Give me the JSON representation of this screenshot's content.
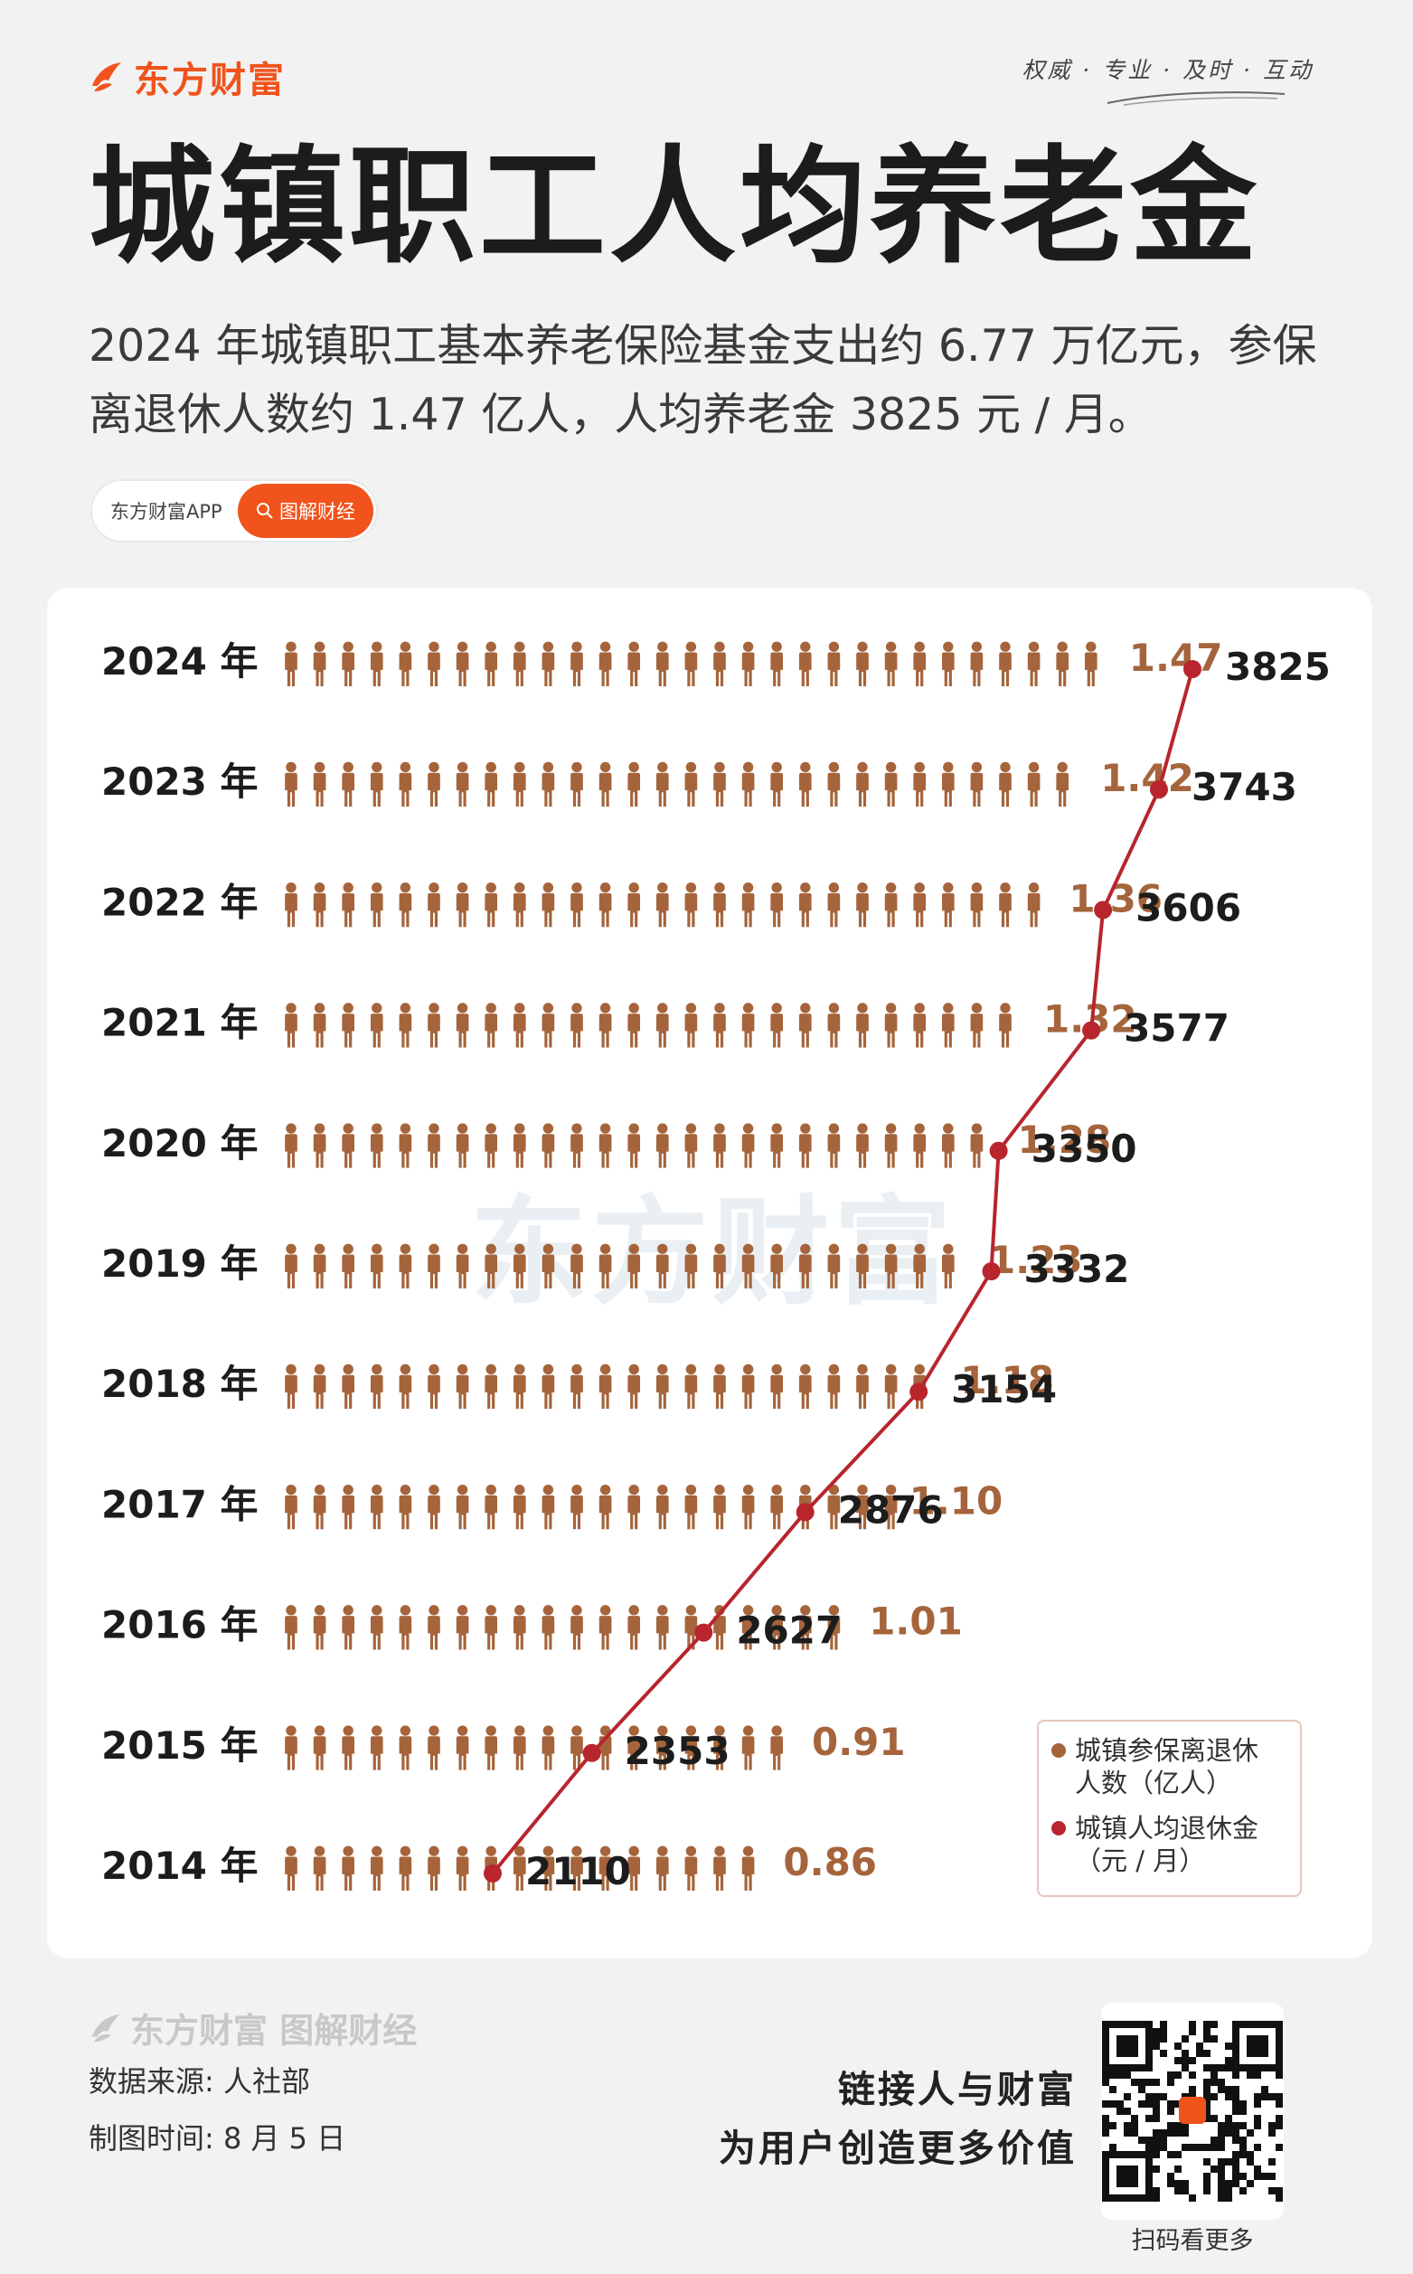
{
  "brand": {
    "name": "东方财富",
    "color": "#f0531c"
  },
  "slogan": "权威 · 专业 · 及时 · 互动",
  "title": "城镇职工人均养老金",
  "subtitle": "2024 年城镇职工基本养老保险基金支出约 6.77 万亿元，参保离退休人数约 1.47 亿人，人均养老金 3825 元 / 月。",
  "app_pill": {
    "label": "东方财富APP",
    "button": "图解财经",
    "icon": "search-icon"
  },
  "watermark": "东方财富",
  "chart_data": {
    "type": "bar",
    "title": "",
    "categories": [
      "2024 年",
      "2023 年",
      "2022 年",
      "2021 年",
      "2020 年",
      "2019 年",
      "2018 年",
      "2017 年",
      "2016 年",
      "2015 年",
      "2014 年"
    ],
    "series": [
      {
        "name": "城镇参保离退休人数（亿人）",
        "values": [
          1.47,
          1.42,
          1.36,
          1.32,
          1.28,
          1.23,
          1.18,
          1.1,
          1.01,
          0.91,
          0.86
        ],
        "labels": [
          "1.47",
          "1.42",
          "1.36",
          "1.32",
          "1.28",
          "1.23",
          "1.18",
          "1.10",
          "1.01",
          "0.91",
          "0.86"
        ],
        "color": "#a5643b",
        "mark": "person-icon",
        "people_per_unit": 20
      },
      {
        "name": "城镇人均退休金（元 / 月）",
        "values": [
          3825,
          3743,
          3606,
          3577,
          3350,
          3332,
          3154,
          2876,
          2627,
          2353,
          2110
        ],
        "color": "#b8252d",
        "mark": "line"
      }
    ],
    "legend": [
      {
        "line1": "城镇参保离退休",
        "line2": "人数（亿人）",
        "color": "#a5643b"
      },
      {
        "line1": "城镇人均退休金",
        "line2": "（元 / 月）",
        "color": "#b8252d"
      }
    ],
    "legend_position": "bottom-right",
    "grid": false
  },
  "footer": {
    "brand": "东方财富 图解财经",
    "source": "数据来源: 人社部",
    "made": "制图时间: 8 月 5 日",
    "tagline1": "链接人与财富",
    "tagline2": "为用户创造更多价值",
    "qr_caption": "扫码看更多"
  }
}
